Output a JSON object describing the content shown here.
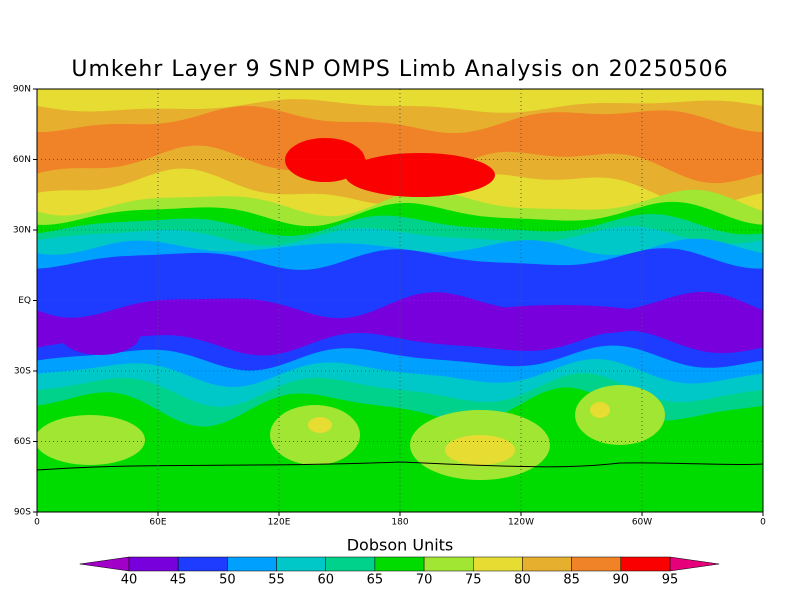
{
  "title": "Umkehr Layer 9 SNP OMPS Limb Analysis on 20250506",
  "y_axis_labels": [
    "90N",
    "60N",
    "30N",
    "EQ",
    "30S",
    "60S",
    "90S"
  ],
  "x_axis_labels": [
    "0",
    "60E",
    "120E",
    "180",
    "120W",
    "60W",
    "0"
  ],
  "colorbar": {
    "title": "Dobson Units",
    "levels": [
      40,
      45,
      50,
      55,
      60,
      65,
      70,
      75,
      80,
      85,
      90,
      95
    ],
    "under_color": "#a000c8",
    "colors": [
      "#7800dc",
      "#1e3cff",
      "#00a0ff",
      "#00c8c8",
      "#00d28c",
      "#00dc00",
      "#a0e632",
      "#e6dc32",
      "#e6af2d",
      "#f08228",
      "#fa0000"
    ],
    "over_color": "#e6007a"
  }
}
